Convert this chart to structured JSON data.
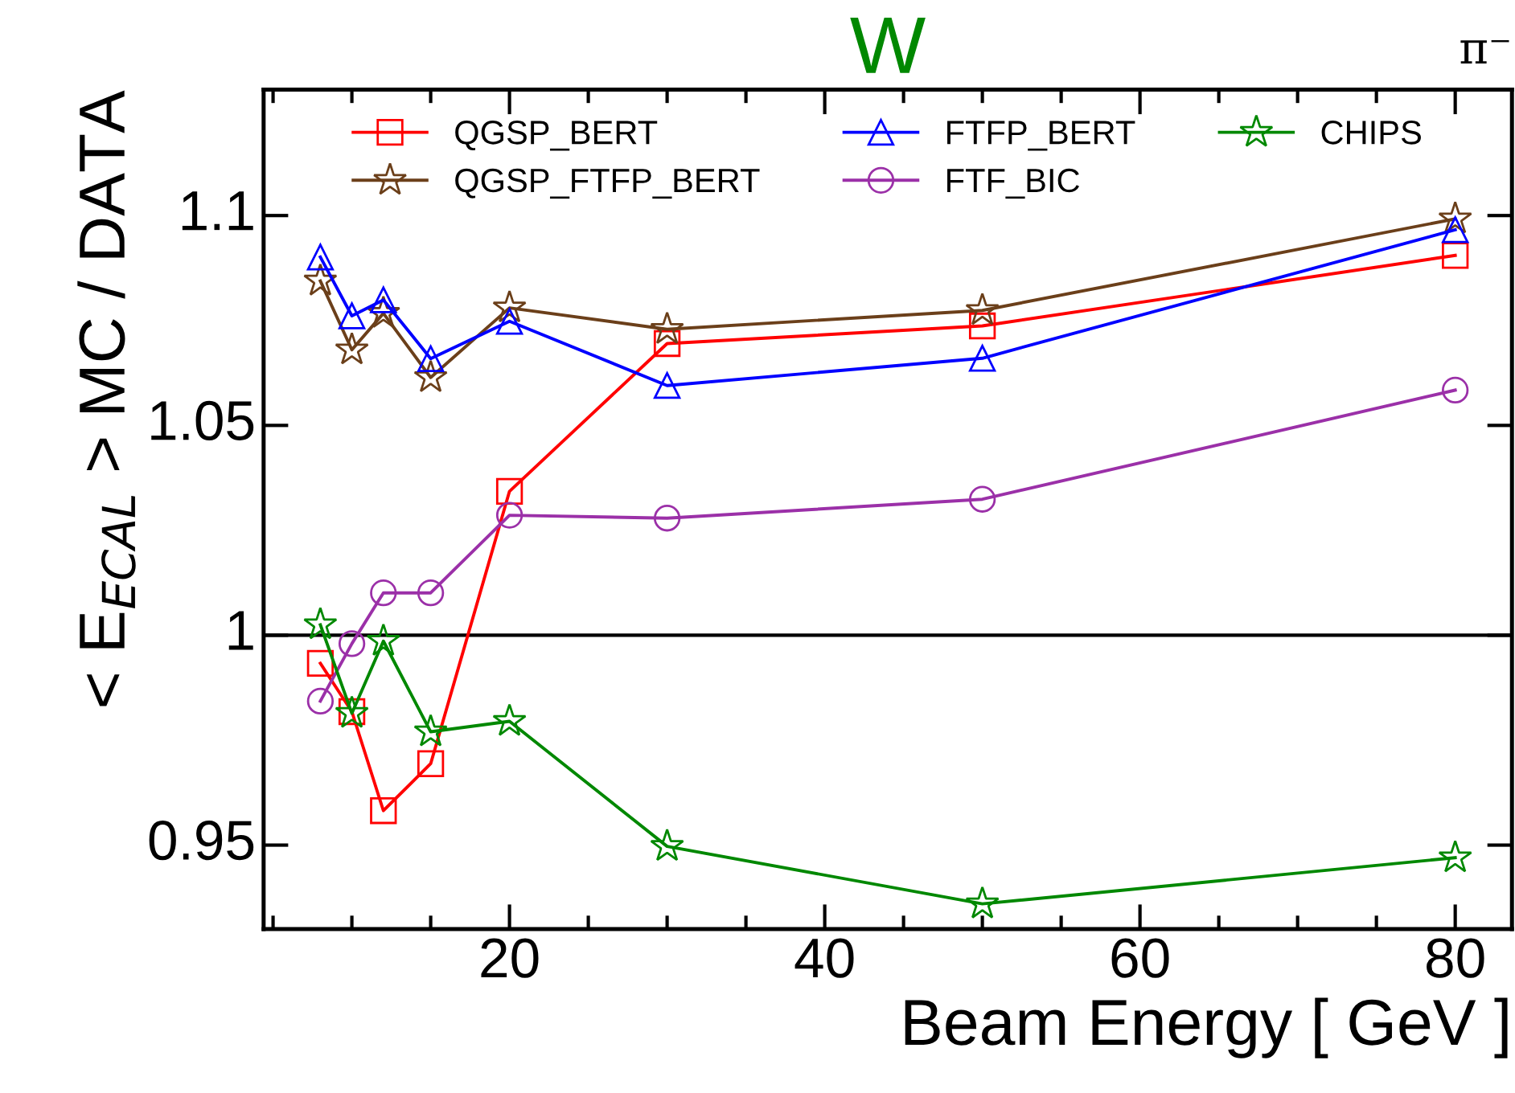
{
  "chart_data": {
    "type": "line",
    "title": "W",
    "xlabel": "Beam Energy [ GeV ]",
    "ylabel": "< E$_{ECAL}$ > MC / DATA",
    "annotations": [
      "π⁻"
    ],
    "x": [
      8,
      10,
      12,
      15,
      20,
      30,
      50,
      80
    ],
    "series": [
      {
        "name": "QGSP_BERT",
        "color": "#ff0000",
        "marker": "square",
        "values": [
          0.9933,
          0.9818,
          0.9582,
          0.9694,
          1.0343,
          1.0695,
          1.0737,
          1.0905
        ]
      },
      {
        "name": "QGSP_FTFP_BERT",
        "color": "#6b3f1a",
        "marker": "star",
        "values": [
          1.0844,
          1.068,
          1.0767,
          1.0614,
          1.078,
          1.0729,
          1.0774,
          1.0992
        ]
      },
      {
        "name": "FTFP_BERT",
        "color": "#0000ff",
        "marker": "triangle",
        "values": [
          1.0901,
          1.0761,
          1.0799,
          1.0659,
          1.0748,
          1.0595,
          1.066,
          1.0966
        ]
      },
      {
        "name": "FTF_BIC",
        "color": "#9b30a8",
        "marker": "circle",
        "values": [
          0.9843,
          0.998,
          1.0101,
          1.0101,
          1.0286,
          1.0279,
          1.0324,
          1.0584
        ]
      },
      {
        "name": "CHIPS",
        "color": "#008800",
        "marker": "star",
        "values": [
          1.0025,
          0.9814,
          0.9986,
          0.977,
          0.9795,
          0.9497,
          0.936,
          0.947
        ]
      }
    ],
    "ref_lines": [
      {
        "axis": "y",
        "value": 1,
        "color": "#000000"
      }
    ],
    "xlim": [
      4.4,
      83.6
    ],
    "ylim": [
      0.93,
      1.13
    ],
    "xticks": [
      20,
      40,
      60,
      80
    ],
    "yticks": [
      0.95,
      1,
      1.05,
      1.1
    ],
    "grid": false,
    "legend": "top",
    "line_style": "solid"
  }
}
